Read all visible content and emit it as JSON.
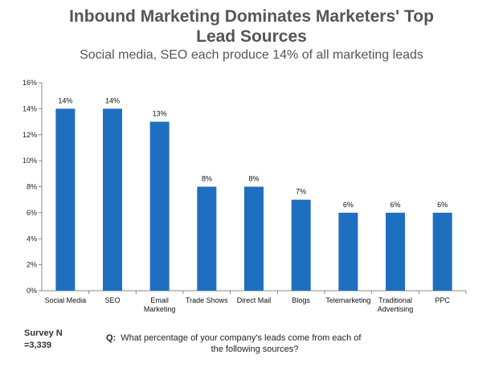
{
  "title_line1": "Inbound Marketing Dominates Marketers' Top",
  "title_line2": "Lead Sources",
  "subtitle": "Social media, SEO each produce 14% of all marketing leads",
  "colors": {
    "bar": "#1f6fc0",
    "axis": "#888888",
    "title": "#555555"
  },
  "chart_data": {
    "type": "bar",
    "categories": [
      [
        "Social Media"
      ],
      [
        "SEO"
      ],
      [
        "Email",
        "Marketing"
      ],
      [
        "Trade Shows"
      ],
      [
        "Direct Mail"
      ],
      [
        "Blogs"
      ],
      [
        "Telemarketing"
      ],
      [
        "Traditional",
        "Advertising"
      ],
      [
        "PPC"
      ]
    ],
    "values": [
      14,
      14,
      13,
      8,
      8,
      7,
      6,
      6,
      6
    ],
    "data_labels": [
      "14%",
      "14%",
      "13%",
      "8%",
      "8%",
      "7%",
      "6%",
      "6%",
      "6%"
    ],
    "ylim": [
      0,
      16
    ],
    "yticks": [
      "0%",
      "2%",
      "4%",
      "6%",
      "8%",
      "10%",
      "12%",
      "14%",
      "16%"
    ],
    "grid": false,
    "legend": "none"
  },
  "footer": {
    "survey_line1": "Survey N",
    "survey_line2": "=3,339",
    "q_label": "Q:",
    "q_line1": "What percentage of your company's leads come from each of",
    "q_line2": "the following sources?"
  }
}
